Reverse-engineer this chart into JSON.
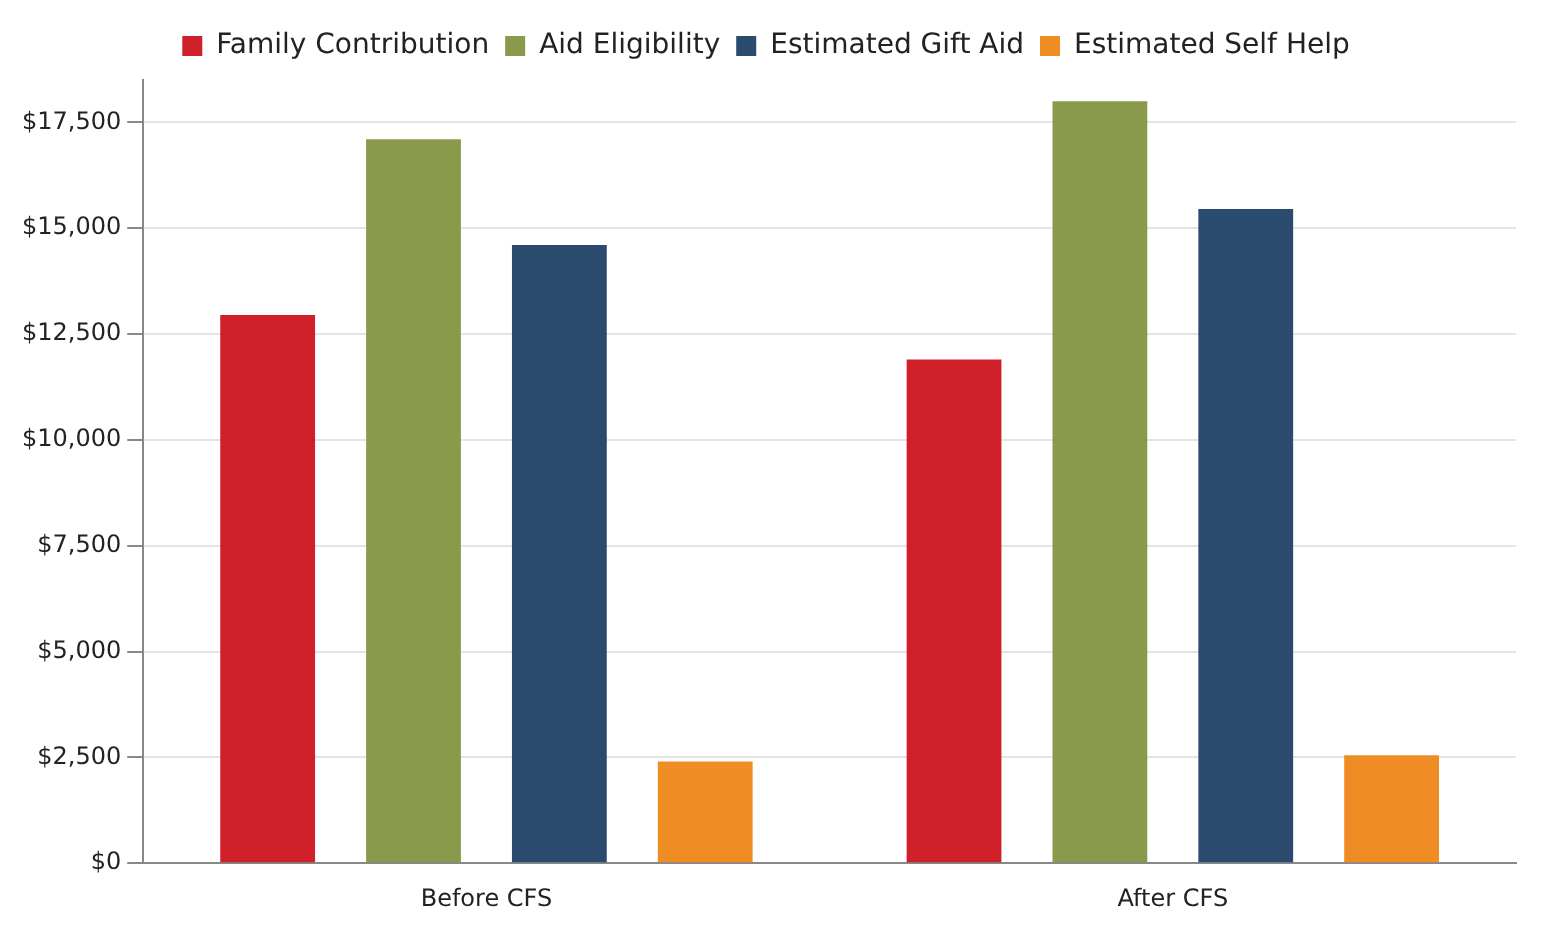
{
  "chart_data": {
    "type": "bar",
    "categories": [
      "Before CFS",
      "After CFS"
    ],
    "series": [
      {
        "name": "Family Contribution",
        "color": "#d0202a",
        "values": [
          12950,
          11900
        ]
      },
      {
        "name": "Aid Eligibility",
        "color": "#8a9a4c",
        "values": [
          17100,
          18000
        ]
      },
      {
        "name": "Estimated Gift Aid",
        "color": "#2a4a6e",
        "values": [
          14600,
          15450
        ]
      },
      {
        "name": "Estimated Self Help",
        "color": "#f08c24",
        "values": [
          2400,
          2550
        ]
      }
    ],
    "ylim": [
      0,
      18500
    ],
    "yticks": [
      {
        "value": 0,
        "label": "$0"
      },
      {
        "value": 2500,
        "label": "$2,500"
      },
      {
        "value": 5000,
        "label": "$5,000"
      },
      {
        "value": 7500,
        "label": "$7,500"
      },
      {
        "value": 10000,
        "label": "$10,000"
      },
      {
        "value": 12500,
        "label": "$12,500"
      },
      {
        "value": 15000,
        "label": "$15,000"
      },
      {
        "value": 17500,
        "label": "$17,500"
      }
    ],
    "grid": "y",
    "legend": "top"
  }
}
